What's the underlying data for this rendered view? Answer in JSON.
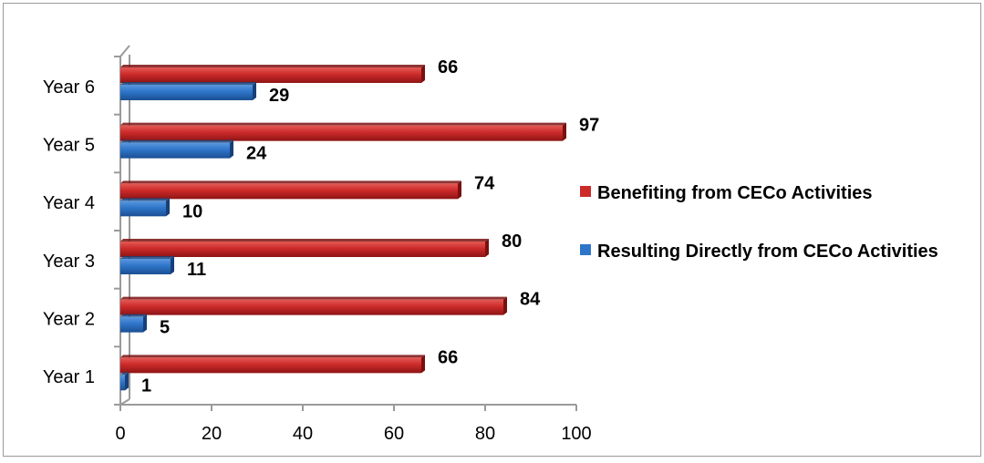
{
  "chart_data": {
    "type": "bar",
    "orientation": "horizontal",
    "categories": [
      "Year 1",
      "Year 2",
      "Year 3",
      "Year 4",
      "Year 5",
      "Year 6"
    ],
    "series": [
      {
        "name": "Resulting Directly from CECo Activities",
        "values": [
          1,
          5,
          11,
          10,
          24,
          29
        ],
        "color": "#2e75c9"
      },
      {
        "name": "Benefiting from CECo Activities",
        "values": [
          66,
          84,
          80,
          74,
          97,
          66
        ],
        "color": "#cc2a2a"
      }
    ],
    "xlim": [
      0,
      100
    ],
    "xticks": [
      "0",
      "20",
      "40",
      "60",
      "80",
      "100"
    ],
    "xticks_values": [
      0,
      20,
      40,
      60,
      80,
      100
    ],
    "grid": false,
    "legend_position": "right",
    "style": "3d-bars"
  }
}
